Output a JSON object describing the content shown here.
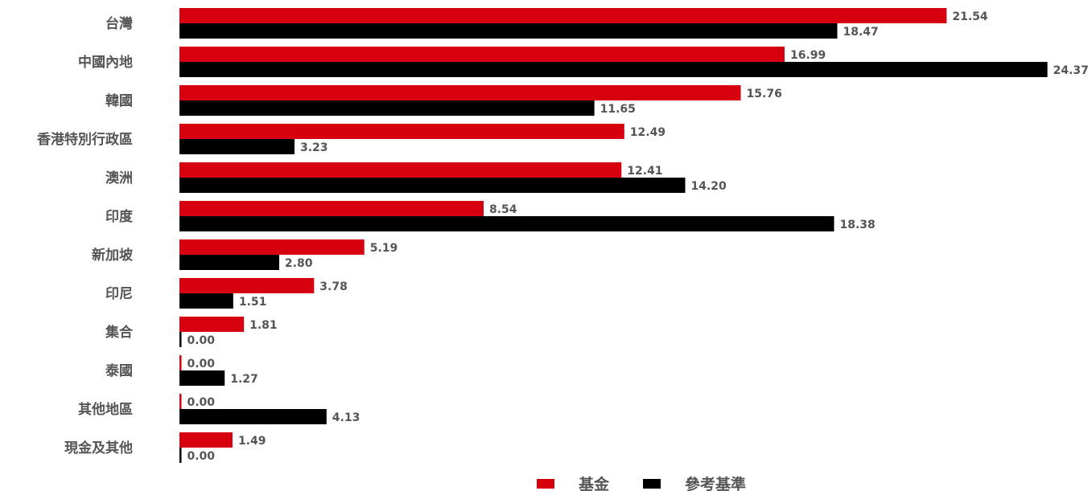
{
  "colors": {
    "fund": "#d7000f",
    "benchmark": "#000000",
    "text": "#555555"
  },
  "chart_data": {
    "type": "bar",
    "orientation": "horizontal",
    "categories": [
      "台灣",
      "中國內地",
      "韓國",
      "香港特別行政區",
      "澳洲",
      "印度",
      "新加坡",
      "印尼",
      "集合",
      "泰國",
      "其他地區",
      "現金及其他"
    ],
    "series": [
      {
        "name": "基金",
        "color": "#d7000f",
        "values": [
          21.54,
          16.99,
          15.76,
          12.49,
          12.41,
          8.54,
          5.19,
          3.78,
          1.81,
          0.0,
          0.0,
          1.49
        ],
        "labels": [
          "21.54",
          "16.99",
          "15.76",
          "12.49",
          "12.41",
          "8.54",
          "5.19",
          "3.78",
          "1.81",
          "0.00",
          "0.00",
          "1.49"
        ]
      },
      {
        "name": "參考基準",
        "color": "#000000",
        "values": [
          18.47,
          24.37,
          11.65,
          3.23,
          14.2,
          18.38,
          2.8,
          1.51,
          0.0,
          1.27,
          4.13,
          0.0
        ],
        "labels": [
          "18.47",
          "24.37",
          "11.65",
          "3.23",
          "14.20",
          "18.38",
          "2.80",
          "1.51",
          "0.00",
          "1.27",
          "4.13",
          "0.00"
        ]
      }
    ],
    "grid": false,
    "legend_position": "bottom-center"
  }
}
